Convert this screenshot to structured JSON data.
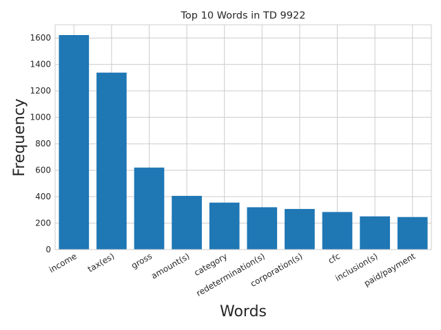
{
  "chart_data": {
    "type": "bar",
    "title": "Top 10 Words in TD 9922",
    "xlabel": "Words",
    "ylabel": "Frequency",
    "categories": [
      "income",
      "tax(es)",
      "gross",
      "amount(s)",
      "category",
      "redetermination(s)",
      "corporation(s)",
      "cfc",
      "inclusion(s)",
      "paid/payment"
    ],
    "values": [
      1622,
      1338,
      620,
      406,
      355,
      320,
      307,
      284,
      251,
      246
    ],
    "ylim": [
      0,
      1700
    ],
    "yticks": [
      0,
      200,
      400,
      600,
      800,
      1000,
      1200,
      1400,
      1600
    ],
    "grid": true,
    "bar_color": "#1f77b4"
  }
}
